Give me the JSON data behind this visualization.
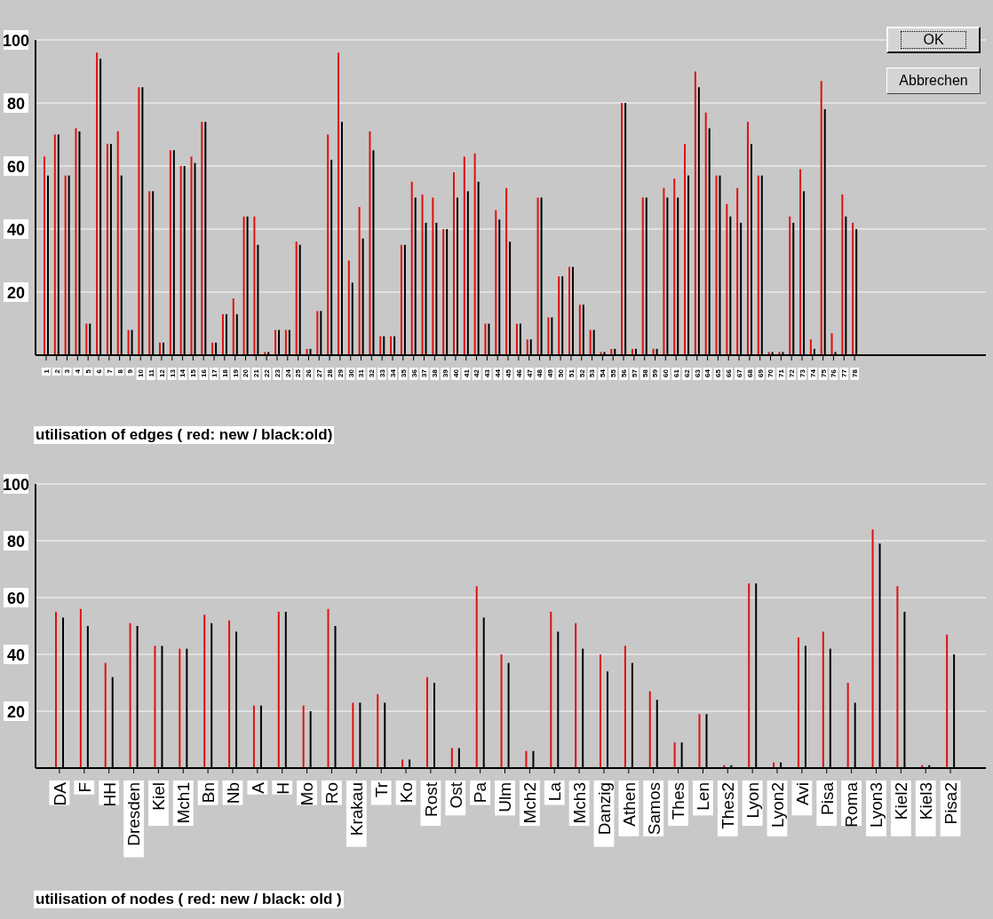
{
  "chart_data": [
    {
      "type": "bar",
      "title": "utilisation of edges ( red: new / black:old)",
      "annotations": [
        "OK",
        "Abbrechen"
      ],
      "categories": [
        "1",
        "2",
        "3",
        "4",
        "5",
        "6",
        "7",
        "8",
        "9",
        "10",
        "11",
        "12",
        "13",
        "14",
        "15",
        "16",
        "17",
        "18",
        "19",
        "20",
        "21",
        "22",
        "23",
        "24",
        "25",
        "26",
        "27",
        "28",
        "29",
        "30",
        "31",
        "32",
        "33",
        "34",
        "35",
        "36",
        "37",
        "38",
        "39",
        "40",
        "41",
        "42",
        "43",
        "44",
        "45",
        "46",
        "47",
        "48",
        "49",
        "50",
        "51",
        "52",
        "53",
        "54",
        "55",
        "56",
        "57",
        "58",
        "59",
        "60",
        "61",
        "62",
        "63",
        "64",
        "65",
        "66",
        "67",
        "68",
        "69",
        "70",
        "71",
        "72",
        "73",
        "74",
        "75",
        "76",
        "77",
        "78"
      ],
      "series": [
        {
          "color": "#e01010",
          "values": [
            63,
            70,
            57,
            72,
            10,
            96,
            67,
            71,
            8,
            85,
            52,
            4,
            65,
            60,
            63,
            74,
            4,
            13,
            18,
            44,
            44,
            1,
            8,
            8,
            36,
            2,
            14,
            70,
            96,
            30,
            47,
            71,
            6,
            6,
            35,
            55,
            51,
            50,
            40,
            58,
            63,
            64,
            10,
            46,
            53,
            10,
            5,
            50,
            12,
            25,
            28,
            16,
            8,
            1,
            2,
            80,
            2,
            50,
            2,
            53,
            56,
            67,
            90,
            77,
            57,
            48,
            53,
            74,
            57,
            1,
            1,
            44,
            59,
            5,
            87,
            7,
            51,
            42
          ]
        },
        {
          "color": "#000000",
          "values": [
            57,
            70,
            57,
            71,
            10,
            94,
            67,
            57,
            8,
            85,
            52,
            4,
            65,
            60,
            61,
            74,
            4,
            13,
            13,
            44,
            35,
            1,
            8,
            8,
            35,
            2,
            14,
            62,
            74,
            23,
            37,
            65,
            6,
            6,
            35,
            50,
            42,
            42,
            40,
            50,
            52,
            55,
            10,
            43,
            36,
            10,
            5,
            50,
            12,
            25,
            28,
            16,
            8,
            1,
            2,
            80,
            2,
            50,
            2,
            50,
            50,
            57,
            85,
            72,
            57,
            44,
            42,
            67,
            57,
            1,
            1,
            42,
            52,
            2,
            78,
            1,
            44,
            40
          ]
        }
      ],
      "ylim": [
        0,
        100
      ],
      "yticks": [
        20,
        40,
        60,
        80,
        100
      ],
      "grid": "y",
      "legend": false
    },
    {
      "type": "bar",
      "title": "utilisation of nodes ( red: new / black: old )",
      "categories": [
        "DA",
        "F",
        "HH",
        "Dresden",
        "Kiel",
        "Mch1",
        "Bn",
        "Nb",
        "A",
        "H",
        "Mo",
        "Ro",
        "Krakau",
        "Tr",
        "Ko",
        "Rost",
        "Ost",
        "Pa",
        "Ulm",
        "Mch2",
        "La",
        "Mch3",
        "Danzig",
        "Athen",
        "Samos",
        "Thes",
        "Len",
        "Thes2",
        "Lyon",
        "Lyon2",
        "Avi",
        "Pisa",
        "Roma",
        "Lyon3",
        "Kiel2",
        "Kiel3",
        "Pisa2"
      ],
      "series": [
        {
          "color": "#e01010",
          "values": [
            55,
            56,
            37,
            51,
            43,
            42,
            54,
            52,
            22,
            55,
            22,
            56,
            23,
            26,
            3,
            32,
            7,
            64,
            40,
            6,
            55,
            51,
            40,
            43,
            27,
            9,
            19,
            1,
            65,
            2,
            46,
            48,
            30,
            84,
            64,
            1,
            47
          ]
        },
        {
          "color": "#000000",
          "values": [
            53,
            50,
            32,
            50,
            43,
            42,
            51,
            48,
            22,
            55,
            20,
            50,
            23,
            23,
            3,
            30,
            7,
            53,
            37,
            6,
            48,
            42,
            34,
            37,
            24,
            9,
            19,
            1,
            65,
            2,
            43,
            42,
            23,
            79,
            55,
            1,
            40
          ]
        }
      ],
      "ylim": [
        0,
        100
      ],
      "yticks": [
        20,
        40,
        60,
        80,
        100
      ],
      "grid": "y",
      "legend": false
    }
  ]
}
